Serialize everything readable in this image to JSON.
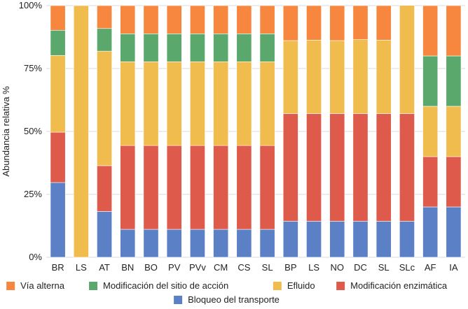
{
  "chart_data": {
    "type": "bar",
    "stacked": true,
    "ylabel": "Abundancia relativa %",
    "ylim": [
      0,
      100
    ],
    "yticks": [
      "0%",
      "25%",
      "50%",
      "75%",
      "100%"
    ],
    "grid": true,
    "legend_position": "bottom",
    "categories": [
      "BR",
      "LS",
      "AT",
      "BN",
      "BO",
      "PV",
      "PVv",
      "CM",
      "CS",
      "SL",
      "BP",
      "LS",
      "NO",
      "DC",
      "SL",
      "SLc",
      "AF",
      "IA"
    ],
    "series": [
      {
        "name": "Bloqueo del transporte",
        "color": "#5b80c5",
        "values": [
          29.7,
          0,
          18.2,
          11.1,
          11.1,
          11.1,
          11.1,
          11.1,
          11.1,
          11.1,
          14.3,
          14.3,
          14.3,
          14.3,
          14.3,
          14.3,
          20.0,
          20.0
        ]
      },
      {
        "name": "Modificación enzimática",
        "color": "#de5a4b",
        "values": [
          20.0,
          0,
          18.2,
          33.3,
          33.3,
          33.3,
          33.3,
          33.3,
          33.3,
          33.3,
          42.8,
          42.8,
          42.8,
          42.8,
          42.8,
          42.8,
          20.0,
          20.0
        ]
      },
      {
        "name": "Efluido",
        "color": "#f1bc4e",
        "values": [
          30.5,
          100,
          45.5,
          33.3,
          33.3,
          33.3,
          33.3,
          33.3,
          33.3,
          33.3,
          29.0,
          29.2,
          29.0,
          29.4,
          29.2,
          43.0,
          20.0,
          20.0
        ]
      },
      {
        "name": "Modificación del sitio de acción",
        "color": "#5aa86c",
        "values": [
          10.0,
          0,
          9.0,
          11.1,
          11.1,
          11.1,
          11.1,
          11.1,
          11.1,
          11.1,
          0,
          0,
          0,
          0,
          0,
          0,
          20.0,
          20.0
        ]
      },
      {
        "name": "Vía alterna",
        "color": "#f7873e",
        "values": [
          9.8,
          0,
          9.1,
          11.2,
          11.2,
          11.2,
          11.2,
          11.2,
          11.2,
          11.2,
          13.9,
          13.7,
          13.9,
          13.5,
          13.7,
          0,
          20.0,
          20.0
        ]
      }
    ],
    "legend_order": [
      "Vía alterna",
      "Modificación del sitio de acción",
      "Efluido",
      "Modificación enzimática",
      "Bloqueo del transporte"
    ]
  }
}
